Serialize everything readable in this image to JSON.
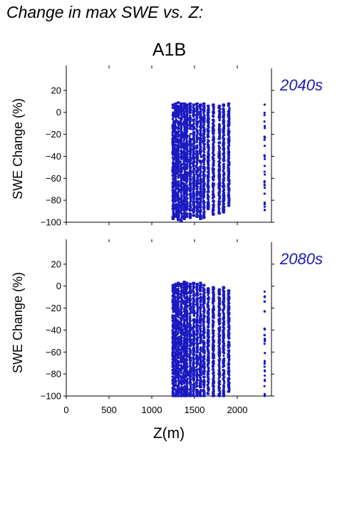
{
  "figure": {
    "title": "Change in max SWE vs. Z:",
    "scenario": "A1B"
  },
  "colors": {
    "points": "#1a1ac0",
    "period_label": "#1a1ab4",
    "axes": "#000000"
  },
  "chart_data": [
    {
      "type": "scatter",
      "title": "2040s",
      "xlabel": "",
      "ylabel": "SWE Change (%)",
      "xlim": [
        0,
        2400
      ],
      "ylim": [
        -100,
        40
      ],
      "yticks": [
        "20",
        "0",
        "−20",
        "−40",
        "−60",
        "−80",
        "−100"
      ],
      "xticks": [],
      "columns": [
        {
          "x": 1250,
          "y_range": [
            -97,
            7
          ]
        },
        {
          "x": 1280,
          "y_range": [
            -95,
            8
          ]
        },
        {
          "x": 1310,
          "y_range": [
            -98,
            9
          ]
        },
        {
          "x": 1345,
          "y_range": [
            -99,
            8
          ]
        },
        {
          "x": 1380,
          "y_range": [
            -97,
            8
          ]
        },
        {
          "x": 1410,
          "y_range": [
            -95,
            7
          ]
        },
        {
          "x": 1450,
          "y_range": [
            -96,
            8
          ]
        },
        {
          "x": 1490,
          "y_range": [
            -94,
            7
          ]
        },
        {
          "x": 1530,
          "y_range": [
            -95,
            8
          ]
        },
        {
          "x": 1570,
          "y_range": [
            -97,
            7
          ]
        },
        {
          "x": 1610,
          "y_range": [
            -96,
            8
          ]
        },
        {
          "x": 1660,
          "y_range": [
            -88,
            6
          ]
        },
        {
          "x": 1720,
          "y_range": [
            -93,
            7
          ]
        },
        {
          "x": 1790,
          "y_range": [
            -92,
            6
          ]
        },
        {
          "x": 1840,
          "y_range": [
            -91,
            7
          ]
        },
        {
          "x": 1900,
          "y_range": [
            -85,
            8
          ]
        },
        {
          "x": 2320,
          "y_range": [
            -89,
            7
          ]
        }
      ]
    },
    {
      "type": "scatter",
      "title": "2080s",
      "xlabel": "Z(m)",
      "ylabel": "SWE Change (%)",
      "xlim": [
        0,
        2400
      ],
      "ylim": [
        -100,
        40
      ],
      "yticks": [
        "20",
        "0",
        "−20",
        "−40",
        "−60",
        "−80",
        "−100"
      ],
      "xticks": [
        "0",
        "500",
        "1000",
        "1500",
        "2000"
      ],
      "columns": [
        {
          "x": 1250,
          "y_range": [
            -100,
            1
          ]
        },
        {
          "x": 1280,
          "y_range": [
            -100,
            2
          ]
        },
        {
          "x": 1310,
          "y_range": [
            -100,
            3
          ]
        },
        {
          "x": 1345,
          "y_range": [
            -100,
            2
          ]
        },
        {
          "x": 1380,
          "y_range": [
            -100,
            4
          ]
        },
        {
          "x": 1410,
          "y_range": [
            -100,
            3
          ]
        },
        {
          "x": 1450,
          "y_range": [
            -100,
            2
          ]
        },
        {
          "x": 1490,
          "y_range": [
            -100,
            3
          ]
        },
        {
          "x": 1530,
          "y_range": [
            -100,
            2
          ]
        },
        {
          "x": 1570,
          "y_range": [
            -100,
            3
          ]
        },
        {
          "x": 1610,
          "y_range": [
            -100,
            1
          ]
        },
        {
          "x": 1660,
          "y_range": [
            -98,
            -2
          ]
        },
        {
          "x": 1720,
          "y_range": [
            -100,
            -1
          ]
        },
        {
          "x": 1790,
          "y_range": [
            -100,
            -3
          ]
        },
        {
          "x": 1840,
          "y_range": [
            -100,
            -1
          ]
        },
        {
          "x": 1900,
          "y_range": [
            -96,
            -4
          ]
        },
        {
          "x": 2320,
          "y_range": [
            -100,
            -5
          ]
        }
      ]
    }
  ]
}
